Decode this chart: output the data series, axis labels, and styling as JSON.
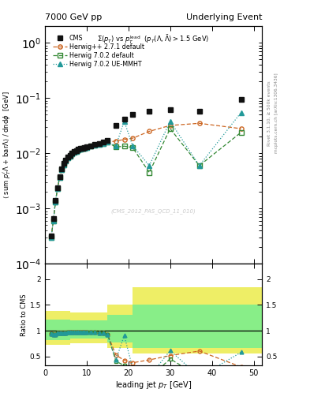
{
  "title_left": "7000 GeV pp",
  "title_right": "Underlying Event",
  "watermark": "(CMS_2012_PAS_QCD_11_010)",
  "right_label1": "Rivet 3.1.10, ≥ 500k events",
  "right_label2": "mcplots.cern.ch [arXiv:1306.3436]",
  "cms_x": [
    1.5,
    2.0,
    2.5,
    3.0,
    3.5,
    4.0,
    4.5,
    5.0,
    5.5,
    6.0,
    6.5,
    7.0,
    7.5,
    8.0,
    8.5,
    9.0,
    9.5,
    10.0,
    11.0,
    12.0,
    13.0,
    14.0,
    15.0,
    17.0,
    19.0,
    21.0,
    25.0,
    30.0,
    37.0,
    47.0
  ],
  "cms_y": [
    0.00032,
    0.00065,
    0.0014,
    0.0024,
    0.0038,
    0.0052,
    0.0065,
    0.0075,
    0.0085,
    0.0093,
    0.01,
    0.0108,
    0.0113,
    0.0118,
    0.0122,
    0.0125,
    0.0128,
    0.0132,
    0.0138,
    0.0145,
    0.0152,
    0.016,
    0.017,
    0.032,
    0.042,
    0.05,
    0.058,
    0.062,
    0.058,
    0.095
  ],
  "hpp_x": [
    1.5,
    2.0,
    2.5,
    3.0,
    3.5,
    4.0,
    4.5,
    5.0,
    5.5,
    6.0,
    6.5,
    7.0,
    7.5,
    8.0,
    8.5,
    9.0,
    9.5,
    10.0,
    11.0,
    12.0,
    13.0,
    14.0,
    15.0,
    17.0,
    19.0,
    21.0,
    25.0,
    30.0,
    37.0,
    47.0
  ],
  "hpp_y": [
    0.0003,
    0.0006,
    0.0013,
    0.0023,
    0.0036,
    0.005,
    0.0062,
    0.0072,
    0.0082,
    0.009,
    0.0097,
    0.0104,
    0.0109,
    0.0114,
    0.0118,
    0.0122,
    0.0125,
    0.0128,
    0.0134,
    0.014,
    0.0146,
    0.0152,
    0.0158,
    0.0168,
    0.0178,
    0.0188,
    0.025,
    0.032,
    0.035,
    0.028
  ],
  "h702_x": [
    1.5,
    2.0,
    2.5,
    3.0,
    3.5,
    4.0,
    4.5,
    5.0,
    5.5,
    6.0,
    6.5,
    7.0,
    7.5,
    8.0,
    8.5,
    9.0,
    9.5,
    10.0,
    11.0,
    12.0,
    13.0,
    14.0,
    15.0,
    17.0,
    19.0,
    21.0,
    25.0,
    30.0,
    37.0,
    47.0
  ],
  "h702_y": [
    0.0003,
    0.0006,
    0.0013,
    0.0023,
    0.0036,
    0.005,
    0.0062,
    0.0072,
    0.0082,
    0.009,
    0.0097,
    0.0104,
    0.0109,
    0.0114,
    0.0118,
    0.0122,
    0.0125,
    0.0128,
    0.0134,
    0.014,
    0.0146,
    0.0152,
    0.0158,
    0.013,
    0.0135,
    0.0128,
    0.0045,
    0.028,
    0.006,
    0.024
  ],
  "hue_x": [
    1.5,
    2.0,
    2.5,
    3.0,
    3.5,
    4.0,
    4.5,
    5.0,
    5.5,
    6.0,
    6.5,
    7.0,
    7.5,
    8.0,
    8.5,
    9.0,
    9.5,
    10.0,
    11.0,
    12.0,
    13.0,
    14.0,
    15.0,
    17.0,
    19.0,
    21.0,
    25.0,
    30.0,
    37.0,
    47.0
  ],
  "hue_y": [
    0.0003,
    0.0006,
    0.0013,
    0.0023,
    0.0036,
    0.005,
    0.0062,
    0.0072,
    0.0082,
    0.009,
    0.0097,
    0.0104,
    0.0109,
    0.0114,
    0.0118,
    0.0122,
    0.0125,
    0.0128,
    0.0134,
    0.014,
    0.0146,
    0.0152,
    0.0158,
    0.0138,
    0.038,
    0.0138,
    0.006,
    0.038,
    0.006,
    0.055
  ],
  "cms_color": "#111111",
  "hpp_color": "#cc6622",
  "h702_color": "#338833",
  "hue_color": "#229999",
  "ratio_outer_color": "#eeee66",
  "ratio_inner_color": "#88ee88",
  "ratio_x_edges": [
    0.0,
    3.0,
    6.0,
    10.0,
    15.0,
    21.0,
    30.0,
    52.0
  ],
  "ratio_outer_lo": [
    0.72,
    0.72,
    0.75,
    0.75,
    0.67,
    0.55,
    0.55
  ],
  "ratio_outer_hi": [
    1.38,
    1.38,
    1.35,
    1.35,
    1.5,
    1.85,
    1.85
  ],
  "ratio_inner_lo": [
    0.82,
    0.82,
    0.85,
    0.85,
    0.77,
    0.67,
    0.67
  ],
  "ratio_inner_hi": [
    1.22,
    1.22,
    1.2,
    1.2,
    1.3,
    1.5,
    1.5
  ],
  "ylim_main": [
    0.0001,
    2.0
  ],
  "ylim_ratio": [
    0.32,
    2.3
  ],
  "xlim": [
    0,
    52
  ],
  "ratio_yticks": [
    0.5,
    1.0,
    1.5,
    2.0
  ],
  "ratio_yticklabels": [
    "0.5",
    "1",
    "1.5",
    "2"
  ]
}
